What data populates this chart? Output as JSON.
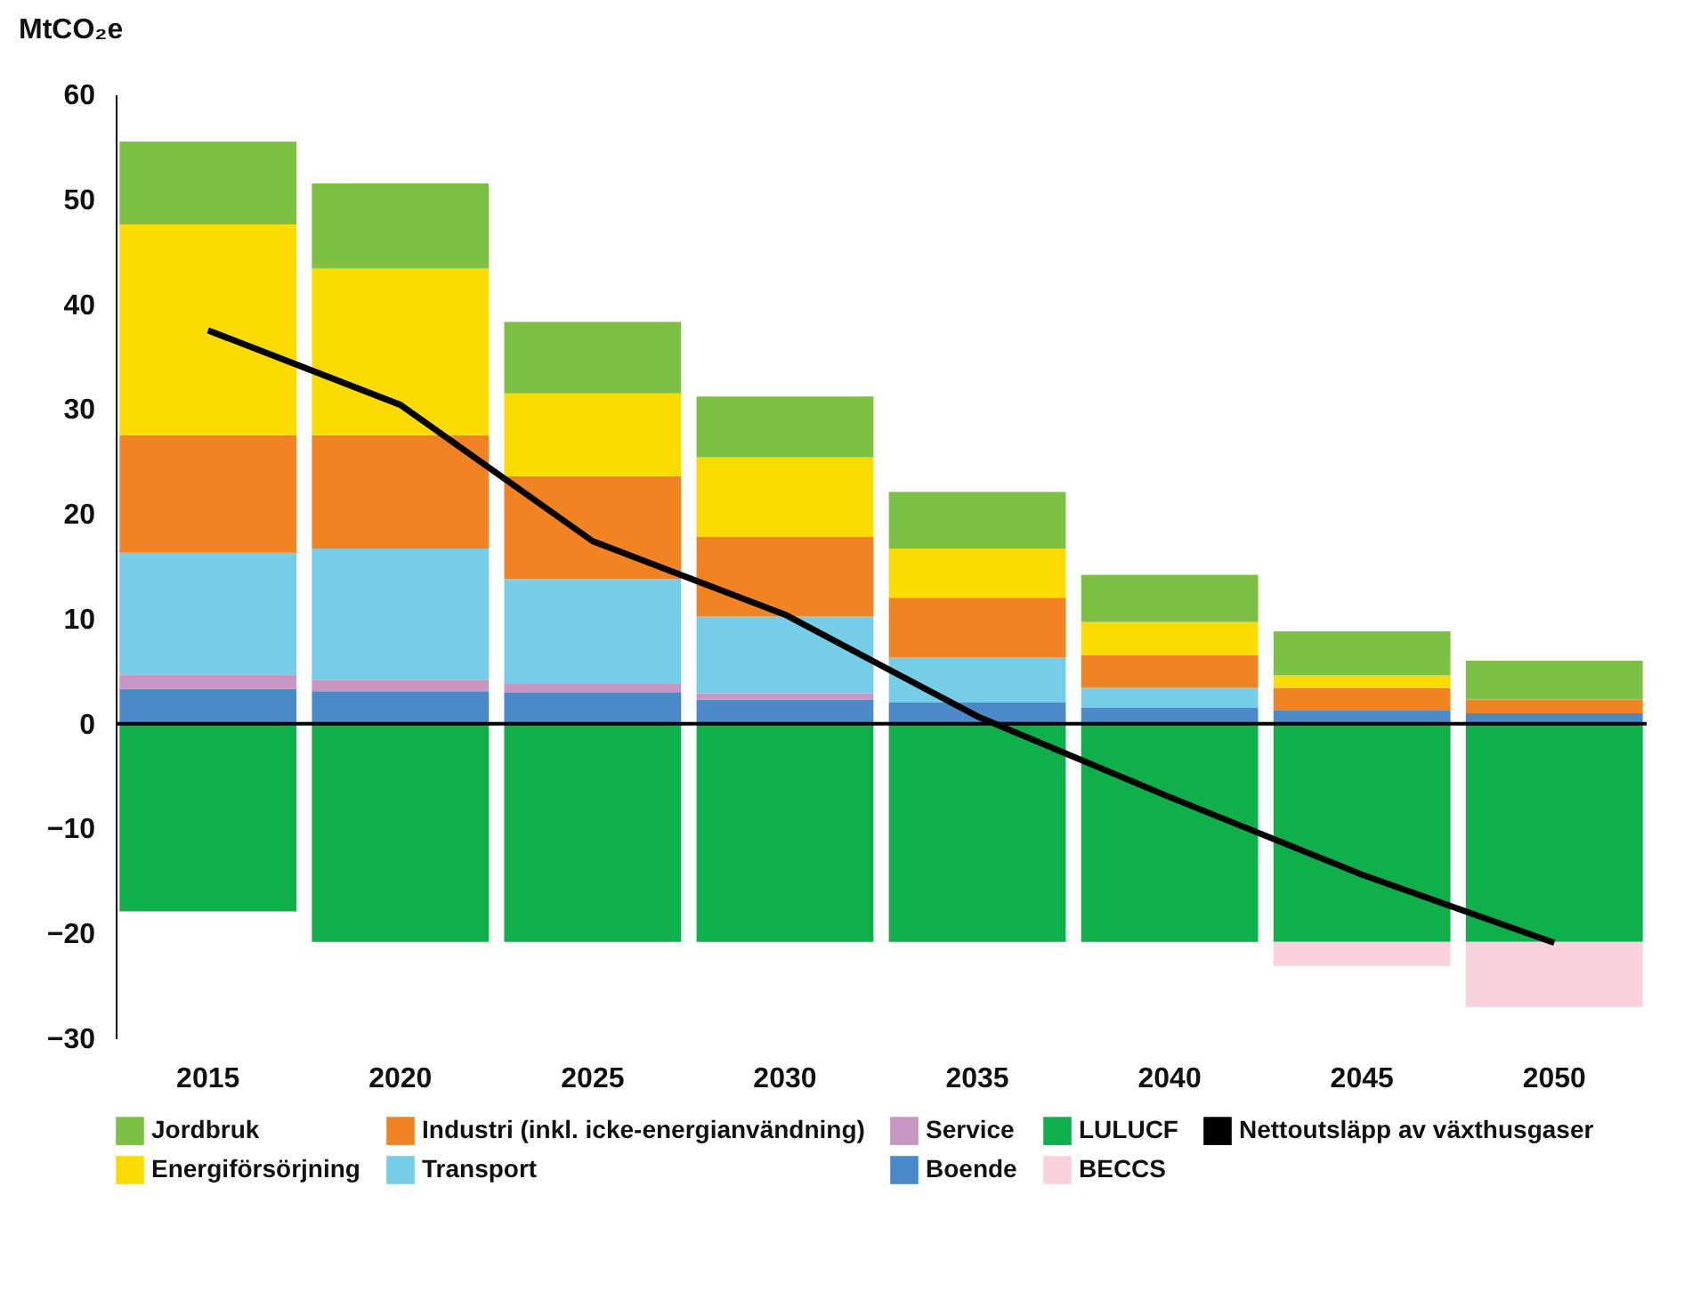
{
  "chart_data": {
    "type": "bar",
    "stacked": true,
    "ylabel": "MtCO₂e",
    "categories": [
      "2015",
      "2020",
      "2025",
      "2030",
      "2035",
      "2040",
      "2045",
      "2050"
    ],
    "ylim": [
      -30,
      60
    ],
    "yticks": [
      -30,
      -20,
      -10,
      0,
      10,
      20,
      30,
      40,
      50,
      60
    ],
    "legend": "bottom",
    "marker": "none",
    "ref_lines": [
      {
        "axis": "y",
        "value": 0,
        "color": "#000000"
      }
    ],
    "series": [
      {
        "name": "Boende",
        "color": "#4a8ac8",
        "values": [
          3.3,
          3.1,
          3.0,
          2.3,
          2.0,
          1.5,
          1.3,
          1.0
        ]
      },
      {
        "name": "Service",
        "color": "#c896c2",
        "values": [
          1.4,
          1.1,
          0.8,
          0.6,
          0,
          0,
          0,
          0
        ]
      },
      {
        "name": "Transport",
        "color": "#76cde8",
        "values": [
          11.6,
          12.5,
          10.0,
          7.3,
          4.3,
          1.9,
          0,
          0
        ]
      },
      {
        "name": "Industri (inkl. icke-energianvändning)",
        "color": "#f28322",
        "values": [
          11.2,
          10.8,
          9.8,
          7.6,
          5.7,
          3.1,
          2.1,
          1.3
        ]
      },
      {
        "name": "Energiförsörjning",
        "color": "#fcdc00",
        "values": [
          20.1,
          15.9,
          7.9,
          7.6,
          4.7,
          3.2,
          1.2,
          0
        ]
      },
      {
        "name": "Jordbruk",
        "color": "#7cc144",
        "values": [
          7.9,
          8.1,
          6.8,
          5.8,
          5.4,
          4.5,
          4.2,
          3.7
        ]
      },
      {
        "name": "LULUCF",
        "color": "#0faf4c",
        "values": [
          -17.9,
          -20.8,
          -20.8,
          -20.8,
          -20.8,
          -20.8,
          -20.8,
          -20.8
        ]
      },
      {
        "name": "BECCS",
        "color": "#fad2dd",
        "values": [
          0,
          0,
          0,
          0,
          0,
          0,
          -2.3,
          -6.2
        ]
      },
      {
        "name": "Nettoutsläpp av växthusgaser",
        "type": "line",
        "color": "#000000",
        "values": [
          37.5,
          30.4,
          17.4,
          10.4,
          0.7,
          -7.0,
          -14.4,
          -20.9
        ]
      }
    ]
  }
}
